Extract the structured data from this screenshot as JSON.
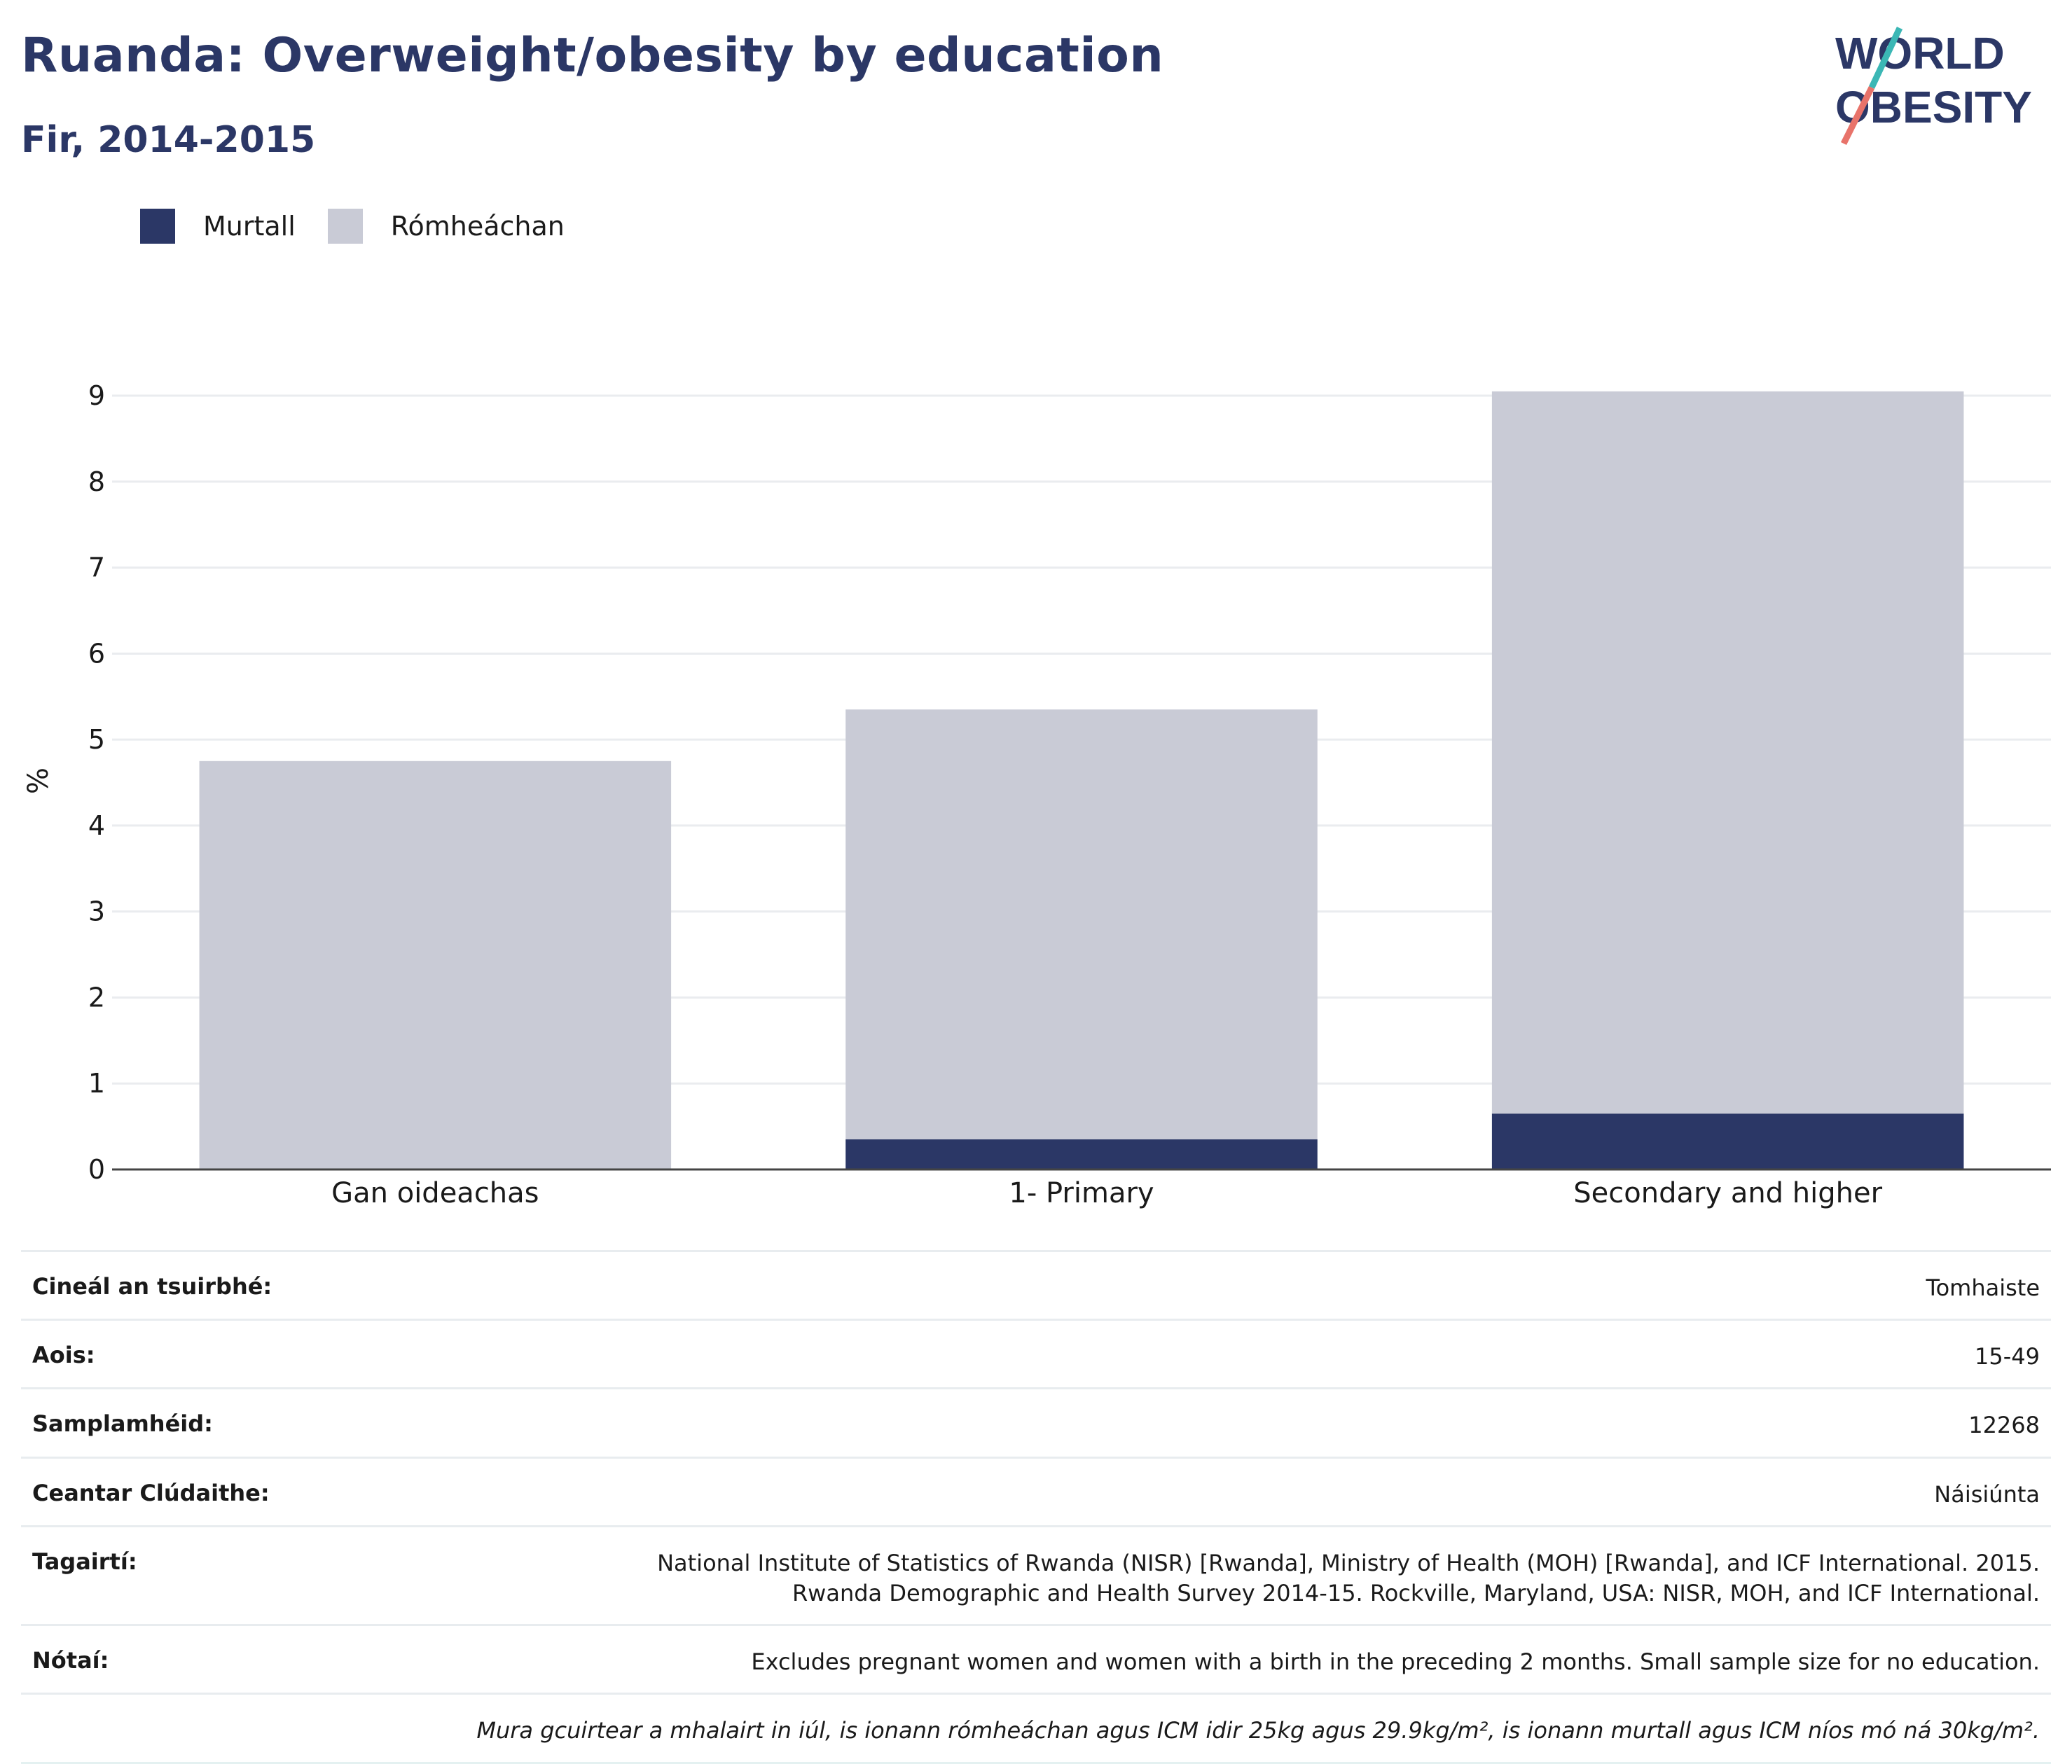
{
  "header": {
    "title": "Ruanda: Overweight/obesity by education",
    "subtitle": "Fir, 2014-2015",
    "logo_text": [
      "WORLD",
      "OBESITY"
    ]
  },
  "legend": [
    {
      "label": "Murtall",
      "color": "#2b3766"
    },
    {
      "label": "Rómheáchan",
      "color": "#c9cbd6"
    }
  ],
  "chart_data": {
    "type": "bar",
    "stacked": true,
    "categories": [
      "Gan oideachas",
      "1- Primary",
      "Secondary and higher"
    ],
    "series": [
      {
        "name": "Murtall",
        "values": [
          0.0,
          0.35,
          0.65
        ],
        "color": "#2b3766"
      },
      {
        "name": "Rómheáchan",
        "values": [
          4.75,
          5.0,
          8.4
        ],
        "color": "#c9cbd6"
      }
    ],
    "ylabel": "%",
    "xlabel": "",
    "ylim": [
      0,
      9
    ],
    "yticks": [
      0,
      1,
      2,
      3,
      4,
      5,
      6,
      7,
      8,
      9
    ],
    "grid": true,
    "legend_position": "top-left"
  },
  "meta": [
    {
      "label": "Cineál an tsuirbhé:",
      "value": "Tomhaiste"
    },
    {
      "label": "Aois:",
      "value": "15-49"
    },
    {
      "label": "Samplamhéid:",
      "value": "12268"
    },
    {
      "label": "Ceantar Clúdaithe:",
      "value": "Náisiúnta"
    },
    {
      "label": "Tagairtí:",
      "value": "National Institute of Statistics of Rwanda (NISR) [Rwanda], Ministry of Health (MOH) [Rwanda], and ICF International. 2015. Rwanda Demographic and Health Survey 2014-15. Rockville, Maryland, USA: NISR, MOH, and ICF International."
    },
    {
      "label": "Nótaí:",
      "value": "Excludes pregnant women and women with a birth in the preceding 2 months. Small sample size for no education."
    },
    {
      "label": "",
      "value": "Mura gcuirtear a mhalairt in iúl, is ionann rómheáchan agus ICM idir 25kg agus 29.9kg/m², is ionann murtall agus ICM níos mó ná 30kg/m².",
      "italic": true
    }
  ]
}
